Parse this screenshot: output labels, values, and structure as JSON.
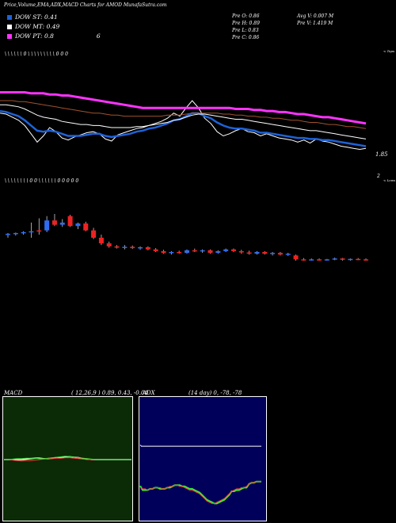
{
  "header": {
    "title": "Price,Volume,EMA,ADX,MACD Charts for AMOD MunafaSutra.com",
    "legend": [
      {
        "label": "DOW ST: 0.41",
        "color": "#1e62d8"
      },
      {
        "label": "DOW MT: 0.49",
        "color": "#ffffff"
      },
      {
        "label": "DOW PT: 0.8",
        "color": "#ff33ff",
        "extra": "6"
      }
    ],
    "stats": {
      "pre_o": "Pre  O: 0.86",
      "pre_h": "Pre  H: 0.89",
      "pre_l": "Pre  L: 0.83",
      "pre_c": "Pre  C: 0.86",
      "avg_v": "Avg V: 0.007 M",
      "pre_v": "Pre  V: 1.419 M"
    }
  },
  "price_panel": {
    "top_label": "< Tops",
    "bottom_label": "< Lows",
    "right_value": "1.85",
    "right_marker": "2",
    "top_marks": "\\   \\            \\   \\   \\            \\  0     \\   \\      \\   \\   \\            \\            \\   \\   \\   0      0   0",
    "bottom_marks": "\\   \\      \\      \\   \\   \\   \\   \\  0 0            \\      \\   \\   \\   \\   \\           0                  0  0  0     0"
  },
  "chart_data": [
    {
      "type": "line",
      "name": "price-ema-panel",
      "series": [
        {
          "name": "price",
          "color": "#ffffff",
          "values": [
            1.5,
            1.49,
            1.46,
            1.43,
            1.38,
            1.3,
            1.22,
            1.28,
            1.36,
            1.32,
            1.26,
            1.24,
            1.27,
            1.29,
            1.31,
            1.32,
            1.3,
            1.25,
            1.23,
            1.29,
            1.31,
            1.33,
            1.35,
            1.36,
            1.38,
            1.4,
            1.42,
            1.45,
            1.5,
            1.47,
            1.55,
            1.62,
            1.55,
            1.45,
            1.4,
            1.32,
            1.28,
            1.3,
            1.33,
            1.35,
            1.32,
            1.31,
            1.28,
            1.3,
            1.28,
            1.26,
            1.25,
            1.24,
            1.22,
            1.24,
            1.21,
            1.25,
            1.23,
            1.22,
            1.2,
            1.18,
            1.17,
            1.16,
            1.15,
            1.16
          ]
        },
        {
          "name": "ema-short",
          "color": "#1e62d8",
          "values": [
            1.52,
            1.51,
            1.49,
            1.47,
            1.43,
            1.38,
            1.33,
            1.32,
            1.33,
            1.32,
            1.3,
            1.28,
            1.28,
            1.28,
            1.29,
            1.3,
            1.3,
            1.28,
            1.27,
            1.28,
            1.29,
            1.3,
            1.32,
            1.33,
            1.35,
            1.36,
            1.38,
            1.4,
            1.43,
            1.44,
            1.47,
            1.5,
            1.5,
            1.47,
            1.45,
            1.41,
            1.38,
            1.36,
            1.35,
            1.35,
            1.34,
            1.33,
            1.31,
            1.31,
            1.3,
            1.29,
            1.28,
            1.27,
            1.26,
            1.26,
            1.25,
            1.25,
            1.24,
            1.24,
            1.23,
            1.22,
            1.21,
            1.2,
            1.19,
            1.18
          ]
        },
        {
          "name": "ema-mid",
          "color": "#ffffff",
          "values": [
            1.58,
            1.58,
            1.57,
            1.56,
            1.54,
            1.51,
            1.48,
            1.46,
            1.45,
            1.44,
            1.42,
            1.41,
            1.4,
            1.39,
            1.39,
            1.38,
            1.38,
            1.37,
            1.36,
            1.36,
            1.36,
            1.36,
            1.37,
            1.37,
            1.38,
            1.39,
            1.4,
            1.41,
            1.43,
            1.44,
            1.46,
            1.48,
            1.49,
            1.49,
            1.48,
            1.47,
            1.46,
            1.45,
            1.44,
            1.44,
            1.43,
            1.42,
            1.41,
            1.4,
            1.39,
            1.38,
            1.37,
            1.36,
            1.35,
            1.34,
            1.33,
            1.33,
            1.32,
            1.31,
            1.3,
            1.29,
            1.28,
            1.27,
            1.26,
            1.25
          ]
        },
        {
          "name": "ema-brown",
          "color": "#a0522d",
          "values": [
            1.62,
            1.62,
            1.62,
            1.61,
            1.61,
            1.6,
            1.59,
            1.58,
            1.57,
            1.56,
            1.55,
            1.54,
            1.53,
            1.52,
            1.51,
            1.5,
            1.5,
            1.49,
            1.48,
            1.48,
            1.47,
            1.47,
            1.47,
            1.47,
            1.47,
            1.47,
            1.47,
            1.48,
            1.48,
            1.48,
            1.49,
            1.5,
            1.5,
            1.5,
            1.5,
            1.5,
            1.49,
            1.49,
            1.48,
            1.48,
            1.47,
            1.47,
            1.46,
            1.46,
            1.45,
            1.45,
            1.44,
            1.43,
            1.43,
            1.42,
            1.41,
            1.41,
            1.4,
            1.39,
            1.39,
            1.38,
            1.37,
            1.37,
            1.36,
            1.35
          ]
        },
        {
          "name": "ema-long",
          "color": "#ff33ff",
          "values": [
            1.7,
            1.7,
            1.7,
            1.7,
            1.7,
            1.69,
            1.69,
            1.69,
            1.68,
            1.68,
            1.67,
            1.67,
            1.66,
            1.65,
            1.64,
            1.63,
            1.62,
            1.61,
            1.6,
            1.59,
            1.58,
            1.57,
            1.56,
            1.55,
            1.55,
            1.55,
            1.55,
            1.55,
            1.55,
            1.55,
            1.55,
            1.55,
            1.55,
            1.55,
            1.55,
            1.55,
            1.55,
            1.55,
            1.54,
            1.54,
            1.54,
            1.53,
            1.53,
            1.52,
            1.52,
            1.51,
            1.51,
            1.5,
            1.49,
            1.49,
            1.48,
            1.47,
            1.46,
            1.46,
            1.45,
            1.44,
            1.43,
            1.42,
            1.41,
            1.4
          ]
        }
      ]
    },
    {
      "type": "candlestick",
      "name": "candle-panel",
      "candles": [
        {
          "o": 0.62,
          "h": 0.66,
          "l": 0.55,
          "c": 0.64,
          "up": true
        },
        {
          "o": 0.64,
          "h": 0.67,
          "l": 0.6,
          "c": 0.66,
          "up": true
        },
        {
          "o": 0.66,
          "h": 0.7,
          "l": 0.62,
          "c": 0.68,
          "up": true
        },
        {
          "o": 0.68,
          "h": 0.9,
          "l": 0.55,
          "c": 0.7,
          "up": true
        },
        {
          "o": 0.7,
          "h": 1.0,
          "l": 0.62,
          "c": 0.72,
          "up": false
        },
        {
          "o": 0.72,
          "h": 1.05,
          "l": 0.68,
          "c": 0.95,
          "up": true
        },
        {
          "o": 0.95,
          "h": 1.1,
          "l": 0.82,
          "c": 0.85,
          "up": false
        },
        {
          "o": 0.85,
          "h": 0.98,
          "l": 0.8,
          "c": 0.9,
          "up": true
        },
        {
          "o": 1.05,
          "h": 1.08,
          "l": 0.8,
          "c": 0.82,
          "up": false
        },
        {
          "o": 0.82,
          "h": 0.9,
          "l": 0.75,
          "c": 0.88,
          "up": true
        },
        {
          "o": 0.88,
          "h": 0.92,
          "l": 0.7,
          "c": 0.72,
          "up": false
        },
        {
          "o": 0.72,
          "h": 0.78,
          "l": 0.52,
          "c": 0.55,
          "up": false
        },
        {
          "o": 0.55,
          "h": 0.62,
          "l": 0.38,
          "c": 0.42,
          "up": false
        },
        {
          "o": 0.42,
          "h": 0.46,
          "l": 0.32,
          "c": 0.35,
          "up": false
        },
        {
          "o": 0.35,
          "h": 0.38,
          "l": 0.3,
          "c": 0.32,
          "up": false
        },
        {
          "o": 0.32,
          "h": 0.38,
          "l": 0.28,
          "c": 0.34,
          "up": true
        },
        {
          "o": 0.34,
          "h": 0.37,
          "l": 0.29,
          "c": 0.31,
          "up": false
        },
        {
          "o": 0.31,
          "h": 0.35,
          "l": 0.27,
          "c": 0.33,
          "up": true
        },
        {
          "o": 0.33,
          "h": 0.35,
          "l": 0.26,
          "c": 0.28,
          "up": false
        },
        {
          "o": 0.28,
          "h": 0.31,
          "l": 0.22,
          "c": 0.24,
          "up": false
        },
        {
          "o": 0.24,
          "h": 0.27,
          "l": 0.18,
          "c": 0.2,
          "up": false
        },
        {
          "o": 0.2,
          "h": 0.24,
          "l": 0.16,
          "c": 0.22,
          "up": true
        },
        {
          "o": 0.22,
          "h": 0.25,
          "l": 0.18,
          "c": 0.2,
          "up": false
        },
        {
          "o": 0.2,
          "h": 0.28,
          "l": 0.18,
          "c": 0.26,
          "up": true
        },
        {
          "o": 0.26,
          "h": 0.3,
          "l": 0.22,
          "c": 0.24,
          "up": false
        },
        {
          "o": 0.24,
          "h": 0.28,
          "l": 0.2,
          "c": 0.26,
          "up": true
        },
        {
          "o": 0.26,
          "h": 0.28,
          "l": 0.18,
          "c": 0.2,
          "up": false
        },
        {
          "o": 0.2,
          "h": 0.26,
          "l": 0.18,
          "c": 0.24,
          "up": true
        },
        {
          "o": 0.24,
          "h": 0.3,
          "l": 0.22,
          "c": 0.28,
          "up": true
        },
        {
          "o": 0.28,
          "h": 0.3,
          "l": 0.22,
          "c": 0.24,
          "up": false
        },
        {
          "o": 0.24,
          "h": 0.27,
          "l": 0.18,
          "c": 0.21,
          "up": false
        },
        {
          "o": 0.21,
          "h": 0.25,
          "l": 0.16,
          "c": 0.18,
          "up": false
        },
        {
          "o": 0.18,
          "h": 0.24,
          "l": 0.16,
          "c": 0.22,
          "up": true
        },
        {
          "o": 0.22,
          "h": 0.24,
          "l": 0.16,
          "c": 0.18,
          "up": false
        },
        {
          "o": 0.18,
          "h": 0.22,
          "l": 0.14,
          "c": 0.2,
          "up": true
        },
        {
          "o": 0.2,
          "h": 0.22,
          "l": 0.14,
          "c": 0.16,
          "up": false
        },
        {
          "o": 0.16,
          "h": 0.2,
          "l": 0.13,
          "c": 0.18,
          "up": true
        },
        {
          "o": 0.14,
          "h": 0.16,
          "l": 0.02,
          "c": 0.05,
          "up": false
        },
        {
          "o": 0.05,
          "h": 0.08,
          "l": 0.02,
          "c": 0.04,
          "up": false
        },
        {
          "o": 0.04,
          "h": 0.07,
          "l": 0.02,
          "c": 0.05,
          "up": true
        },
        {
          "o": 0.05,
          "h": 0.07,
          "l": 0.02,
          "c": 0.04,
          "up": false
        },
        {
          "o": 0.04,
          "h": 0.06,
          "l": 0.02,
          "c": 0.05,
          "up": true
        },
        {
          "o": 0.05,
          "h": 0.09,
          "l": 0.03,
          "c": 0.07,
          "up": true
        },
        {
          "o": 0.07,
          "h": 0.08,
          "l": 0.02,
          "c": 0.04,
          "up": false
        },
        {
          "o": 0.04,
          "h": 0.07,
          "l": 0.02,
          "c": 0.06,
          "up": true
        },
        {
          "o": 0.06,
          "h": 0.08,
          "l": 0.03,
          "c": 0.05,
          "up": false
        },
        {
          "o": 0.05,
          "h": 0.07,
          "l": 0.02,
          "c": 0.04,
          "up": false
        }
      ]
    },
    {
      "type": "line",
      "name": "macd-panel",
      "label": "MACD",
      "params": "( 12,26,9 ) 0.89, 0.43, -0.04",
      "ylim": [
        -1,
        1
      ],
      "series": [
        {
          "name": "macd",
          "color": "#ffffff",
          "values": [
            0,
            0,
            0,
            0,
            0,
            0.01,
            0.02,
            0.03,
            0.03,
            0.02,
            0.02,
            0.03,
            0.04,
            0.05,
            0.06,
            0.06,
            0.05,
            0.04,
            0.02,
            0.01,
            0,
            0,
            0,
            0,
            0,
            0,
            0,
            0,
            0,
            0
          ]
        },
        {
          "name": "signal",
          "color": "#ff3b3b",
          "values": [
            0,
            0,
            -0.01,
            -0.02,
            -0.03,
            -0.02,
            -0.02,
            -0.01,
            0,
            0.01,
            0.02,
            0.02,
            0.03,
            0.03,
            0.04,
            0.04,
            0.03,
            0.02,
            0.01,
            0,
            0,
            0,
            0,
            0,
            0,
            0,
            0,
            0,
            0,
            0
          ]
        },
        {
          "name": "hist",
          "color": "#33dd33",
          "values": [
            0,
            0,
            0.01,
            0.02,
            0.02,
            0.03,
            0.03,
            0.03,
            0.02,
            0.02,
            0.03,
            0.04,
            0.05,
            0.06,
            0.07,
            0.06,
            0.05,
            0.04,
            0.03,
            0.02,
            0.01,
            0,
            0,
            0,
            0,
            0,
            0,
            0,
            0,
            0
          ]
        }
      ]
    },
    {
      "type": "line",
      "name": "adx-panel",
      "label": "ADX",
      "params": "(14 day) 0, -78, -78",
      "ylim": [
        -100,
        30
      ],
      "series": [
        {
          "name": "adx",
          "color": "#ffffff",
          "values": [
            2,
            0,
            0,
            0,
            0,
            0,
            0,
            0,
            0,
            0,
            0,
            0,
            0,
            0,
            0,
            0,
            0,
            0,
            0,
            0,
            0,
            0,
            0,
            0,
            0,
            0,
            0,
            0,
            0,
            0,
            0,
            0,
            0,
            0,
            0,
            0,
            0,
            0,
            0,
            0,
            0,
            0,
            0,
            0,
            0,
            0,
            0,
            0,
            0,
            0,
            0,
            0,
            0,
            0,
            0,
            0,
            0,
            0,
            0,
            0,
            0,
            0,
            0,
            0,
            0,
            0,
            0,
            0,
            0,
            0,
            0,
            0,
            0,
            0,
            0,
            0,
            0,
            0,
            0,
            0,
            0,
            0,
            0,
            0,
            0,
            0,
            0,
            0,
            0,
            0,
            0,
            0,
            0,
            0,
            0,
            0,
            0,
            0,
            0,
            0
          ]
        },
        {
          "name": "pdi",
          "color": "#33ee33",
          "values": [
            -65,
            -72,
            -72,
            -72,
            -70,
            -70,
            -68,
            -68,
            -70,
            -70,
            -70,
            -68,
            -68,
            -66,
            -64,
            -64,
            -64,
            -66,
            -66,
            -68,
            -70,
            -70,
            -72,
            -74,
            -76,
            -80,
            -84,
            -88,
            -90,
            -92,
            -94,
            -94,
            -92,
            -90,
            -88,
            -84,
            -80,
            -74,
            -74,
            -72,
            -72,
            -70,
            -68,
            -68,
            -62,
            -60,
            -60,
            -58,
            -58,
            -58
          ]
        },
        {
          "name": "mdi",
          "color": "#ff3b3b",
          "values": [
            -68,
            -70,
            -70,
            -72,
            -70,
            -70,
            -68,
            -68,
            -68,
            -70,
            -70,
            -68,
            -66,
            -66,
            -64,
            -64,
            -66,
            -66,
            -68,
            -70,
            -72,
            -72,
            -74,
            -76,
            -78,
            -82,
            -86,
            -90,
            -92,
            -94,
            -94,
            -92,
            -90,
            -88,
            -86,
            -82,
            -78,
            -74,
            -72,
            -70,
            -70,
            -68,
            -68,
            -66,
            -62,
            -60,
            -60,
            -58,
            -58,
            -58
          ]
        }
      ]
    }
  ]
}
